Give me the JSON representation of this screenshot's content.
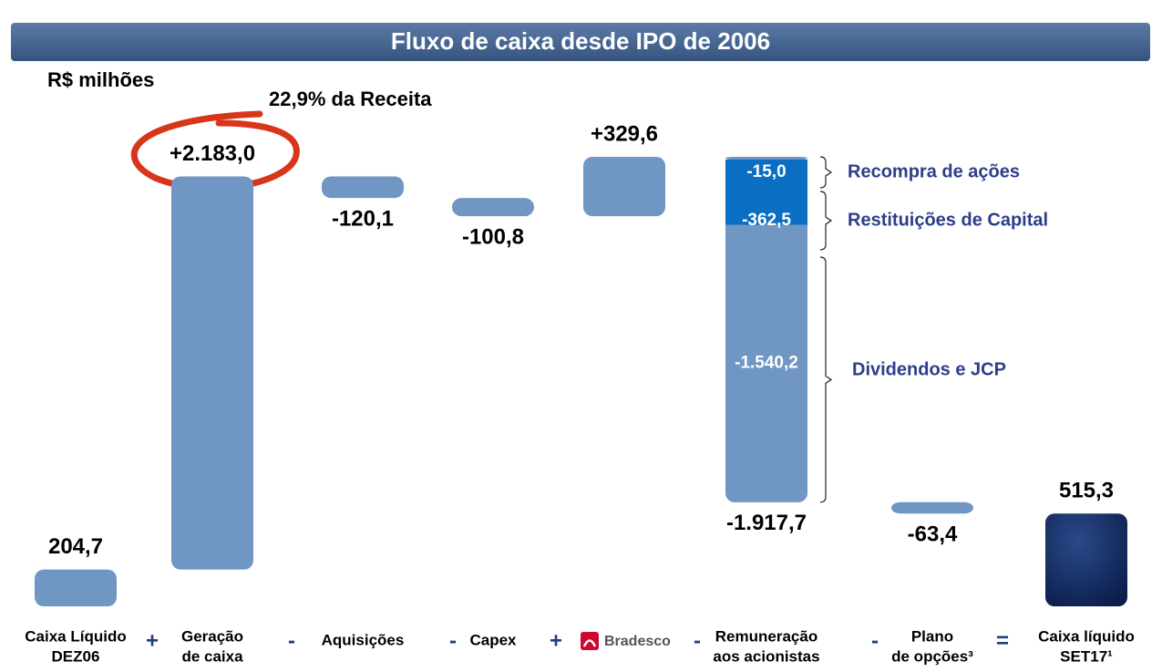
{
  "chart_data": {
    "type": "waterfall",
    "title": "Fluxo de caixa desde IPO de 2006",
    "subtitle": "R$ milhões",
    "annotation": "22,9% da Receita",
    "categories": [
      [
        "Caixa Líquido",
        "DEZ06"
      ],
      [
        "Geração",
        "de caixa"
      ],
      [
        "Aquisições"
      ],
      [
        "Capex"
      ],
      [
        "Bradesco"
      ],
      [
        "Remuneração",
        "aos acionistas"
      ],
      [
        "Plano",
        "de opções³"
      ],
      [
        "Caixa líquido",
        "SET17¹"
      ]
    ],
    "operators": [
      "+",
      "-",
      "-",
      "+",
      "-",
      "-",
      "="
    ],
    "values": [
      204.7,
      2183.0,
      -120.1,
      -100.8,
      329.6,
      -1917.7,
      -63.4,
      515.3
    ],
    "value_labels": [
      "204,7",
      "+2.183,0",
      "-120,1",
      "-100,8",
      "+329,6",
      "-1.917,7",
      "-63,4",
      "515,3"
    ],
    "totals": [
      0,
      7
    ],
    "color": "#7096c4",
    "total_color": "#132c63",
    "breakdown": {
      "category": 5,
      "names": [
        "Recompra de ações",
        "Restituições de Capital",
        "Dividendos e JCP"
      ],
      "values": [
        -15.0,
        -362.5,
        -1540.2
      ],
      "value_labels": [
        "-15,0",
        "-362,5",
        "-1.540,2"
      ],
      "colors": [
        "#7096c4",
        "#0a6fc2",
        "#7096c4"
      ]
    }
  }
}
